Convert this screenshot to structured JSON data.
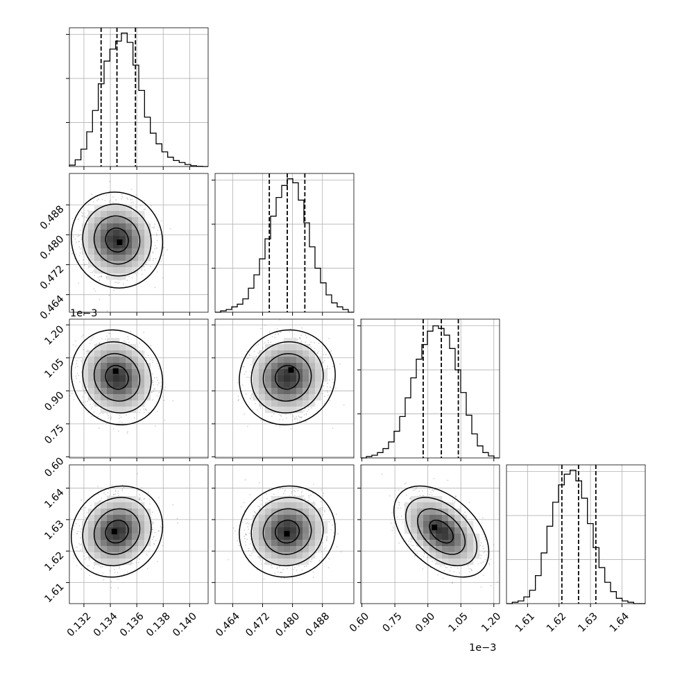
{
  "chart_data": {
    "type": "corner",
    "title": "",
    "xlabels": [
      "",
      "",
      "",
      ""
    ],
    "ylabels": [
      "",
      "",
      "",
      ""
    ],
    "scale_offsets": [
      {
        "axis": "y-row-3",
        "text": "1e−3"
      },
      {
        "axis": "x-col-3",
        "text": "1e−3"
      }
    ],
    "grid": true,
    "parameters": [
      {
        "range": [
          0.1309,
          0.1414
        ],
        "ticks": [
          0.132,
          0.134,
          0.136,
          0.138,
          0.14
        ],
        "tick_labels": [
          "0.132",
          "0.134",
          "0.136",
          "0.138",
          "0.140"
        ],
        "quantiles": [
          0.1333,
          0.1345,
          0.1359
        ],
        "hist_ymax": 1.04,
        "hist": [
          0.01,
          0.05,
          0.13,
          0.26,
          0.42,
          0.62,
          0.79,
          0.88,
          0.94,
          1.0,
          0.93,
          0.76,
          0.57,
          0.37,
          0.25,
          0.17,
          0.11,
          0.07,
          0.045,
          0.03,
          0.015,
          0.006,
          0.002,
          0.0
        ]
      },
      {
        "range": [
          0.4593,
          0.4964
        ],
        "ticks": [
          0.464,
          0.472,
          0.48,
          0.488
        ],
        "tick_labels": [
          "0.464",
          "0.472",
          "0.480",
          "0.488"
        ],
        "quantiles": [
          0.4738,
          0.4786,
          0.4833
        ],
        "hist_ymax": 1.04,
        "hist": [
          0.0,
          0.01,
          0.02,
          0.04,
          0.06,
          0.1,
          0.18,
          0.28,
          0.4,
          0.55,
          0.72,
          0.86,
          0.95,
          1.0,
          0.97,
          0.84,
          0.67,
          0.49,
          0.33,
          0.22,
          0.13,
          0.07,
          0.04,
          0.02,
          0.0
        ]
      },
      {
        "range": [
          0.595,
          1.226
        ],
        "ticks": [
          0.6,
          0.75,
          0.9,
          1.05,
          1.2
        ],
        "tick_labels": [
          "0.60",
          "0.75",
          "0.90",
          "1.05",
          "1.20"
        ],
        "quantiles": [
          0.8788,
          0.9613,
          1.0386
        ],
        "hist_ymax": 1.04,
        "hist": [
          0.0,
          0.01,
          0.02,
          0.04,
          0.07,
          0.12,
          0.2,
          0.31,
          0.45,
          0.6,
          0.74,
          0.85,
          0.95,
          0.99,
          0.97,
          0.92,
          0.82,
          0.66,
          0.49,
          0.32,
          0.18,
          0.09,
          0.04,
          0.015,
          0.0
        ]
      },
      {
        "range": [
          1.6033,
          1.6474
        ],
        "ticks": [
          1.61,
          1.62,
          1.63,
          1.64
        ],
        "tick_labels": [
          "1.61",
          "1.62",
          "1.63",
          "1.64"
        ],
        "quantiles": [
          1.6209,
          1.6262,
          1.6317
        ],
        "hist_ymax": 1.04,
        "hist": [
          0.0,
          0.01,
          0.02,
          0.05,
          0.1,
          0.21,
          0.38,
          0.58,
          0.76,
          0.89,
          0.97,
          1.0,
          0.92,
          0.79,
          0.6,
          0.42,
          0.27,
          0.16,
          0.09,
          0.04,
          0.02,
          0.01,
          0.0,
          0.0
        ]
      }
    ],
    "pairs": [
      {
        "row": 1,
        "col": 0,
        "mean": [
          0.1345,
          0.4786
        ],
        "sd": [
          0.00128,
          0.00475
        ],
        "rho": -0.05,
        "peak": [
          0.1347,
          0.478
        ]
      },
      {
        "row": 2,
        "col": 0,
        "mean": [
          0.1345,
          0.9613
        ],
        "sd": [
          0.00128,
          0.0799
        ],
        "rho": -0.1,
        "peak": [
          0.1344,
          0.99
        ]
      },
      {
        "row": 2,
        "col": 1,
        "mean": [
          0.4786,
          0.9613
        ],
        "sd": [
          0.00475,
          0.0799
        ],
        "rho": 0.05,
        "peak": [
          0.4796,
          0.995
        ]
      },
      {
        "row": 3,
        "col": 0,
        "mean": [
          0.1345,
          1.6262
        ],
        "sd": [
          0.00128,
          0.00536
        ],
        "rho": 0.12,
        "peak": [
          0.1343,
          1.6262
        ]
      },
      {
        "row": 3,
        "col": 1,
        "mean": [
          0.4786,
          1.6262
        ],
        "sd": [
          0.00475,
          0.00536
        ],
        "rho": 0.05,
        "peak": [
          0.4785,
          1.6255
        ]
      },
      {
        "row": 3,
        "col": 2,
        "mean": [
          0.9613,
          1.6262
        ],
        "sd": [
          0.0799,
          0.00536
        ],
        "rho": -0.45,
        "peak": [
          0.93,
          1.6275
        ]
      }
    ],
    "contour_levels_sigma": [
      0.5,
      1.0,
      1.5,
      2.0
    ]
  }
}
